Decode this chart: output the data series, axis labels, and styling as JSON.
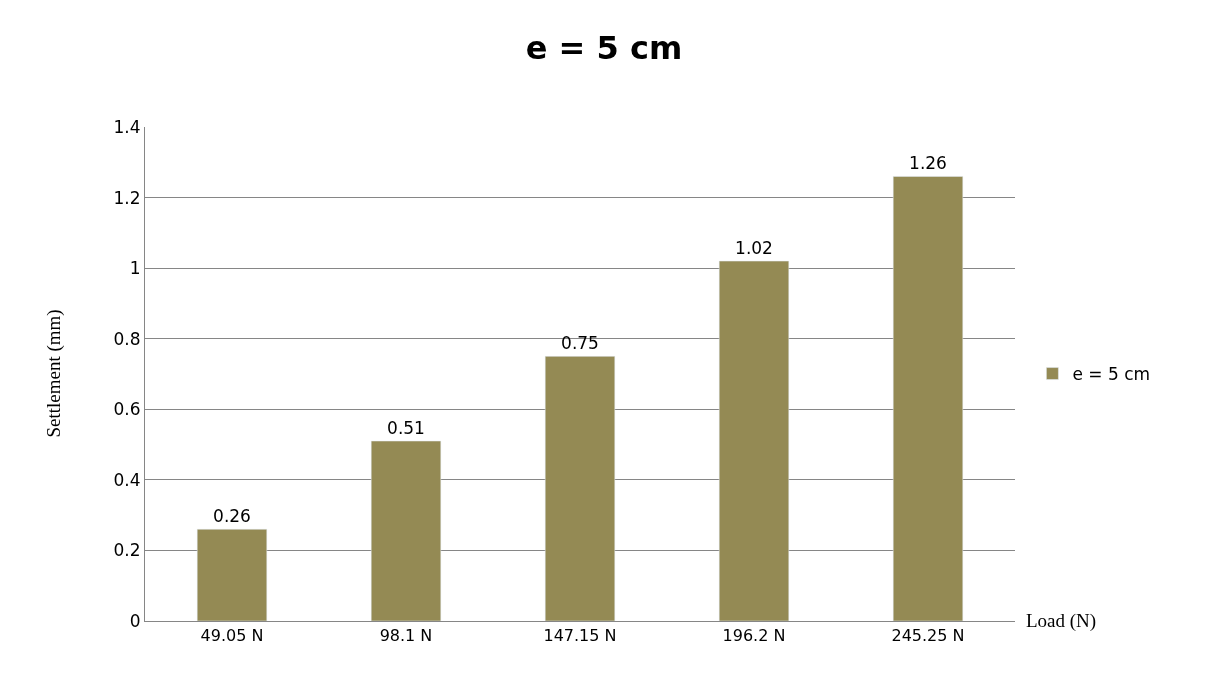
{
  "chart_data": {
    "type": "bar",
    "title": "e = 5 cm",
    "xlabel": "Load (N)",
    "ylabel": "Settlement (mm)",
    "categories": [
      "49.05 N",
      "98.1 N",
      "147.15 N",
      "196.2 N",
      "245.25 N"
    ],
    "series": [
      {
        "name": "e = 5 cm",
        "color": "#948a54",
        "values": [
          0.26,
          0.51,
          0.75,
          1.02,
          1.26
        ]
      }
    ],
    "ylim": [
      0,
      1.4
    ],
    "yticks": [
      0,
      0.2,
      0.4,
      0.6,
      0.8,
      1,
      1.2,
      1.4
    ],
    "grid": "y",
    "legend": "right",
    "data_labels": true
  }
}
